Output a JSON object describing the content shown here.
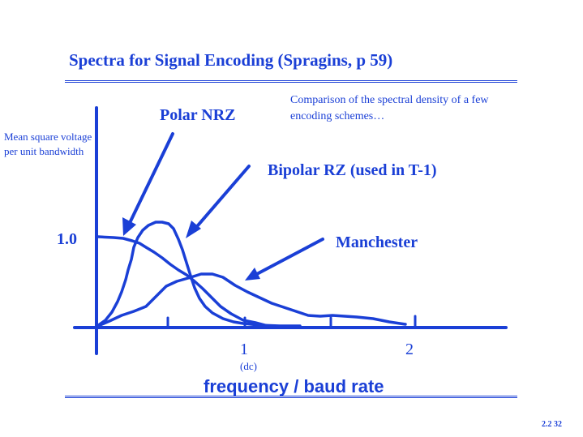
{
  "title": "Spectra for Signal Encoding (Spragins, p 59)",
  "note": "Comparison of the spectral density of a few encoding schemes…",
  "y_axis_label": "Mean square voltage per unit bandwidth",
  "curve_labels": {
    "polar_nrz": "Polar NRZ",
    "bipolar_rz": "Bipolar RZ  (used in T-1)",
    "manchester": "Manchester"
  },
  "y_tick": "1.0",
  "x_ticks": {
    "one": "1",
    "two": "2",
    "dc": "(dc)"
  },
  "x_axis_label": "frequency / baud rate",
  "footer": "2.2   32",
  "colors": {
    "accent": "#1a3fd6"
  }
}
